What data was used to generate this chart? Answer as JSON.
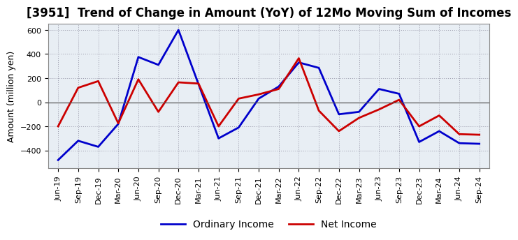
{
  "title": "[3951]  Trend of Change in Amount (YoY) of 12Mo Moving Sum of Incomes",
  "ylabel": "Amount (million yen)",
  "labels": [
    "Jun-19",
    "Sep-19",
    "Dec-19",
    "Mar-20",
    "Jun-20",
    "Sep-20",
    "Dec-20",
    "Mar-21",
    "Jun-21",
    "Sep-21",
    "Dec-21",
    "Mar-22",
    "Jun-22",
    "Sep-22",
    "Dec-22",
    "Mar-23",
    "Jun-23",
    "Sep-23",
    "Dec-23",
    "Mar-24",
    "Jun-24",
    "Sep-24"
  ],
  "ordinary_income": [
    -480,
    -320,
    -370,
    -180,
    375,
    310,
    600,
    150,
    -300,
    -210,
    30,
    130,
    330,
    285,
    -100,
    -80,
    110,
    70,
    -330,
    -240,
    -340,
    -345
  ],
  "net_income": [
    -200,
    120,
    175,
    -175,
    190,
    -80,
    165,
    155,
    -200,
    30,
    65,
    110,
    365,
    -70,
    -240,
    -130,
    -60,
    20,
    -200,
    -110,
    -265,
    -270
  ],
  "ordinary_color": "#0000cc",
  "net_color": "#cc0000",
  "ylim": [
    -550,
    650
  ],
  "yticks": [
    -400,
    -200,
    0,
    200,
    400,
    600
  ],
  "plot_bg_color": "#e8eef4",
  "fig_bg_color": "#ffffff",
  "grid_color": "#9999aa",
  "line_width": 2.0,
  "title_fontsize": 12,
  "tick_fontsize": 8,
  "ylabel_fontsize": 9,
  "legend_labels": [
    "Ordinary Income",
    "Net Income"
  ],
  "legend_fontsize": 10
}
